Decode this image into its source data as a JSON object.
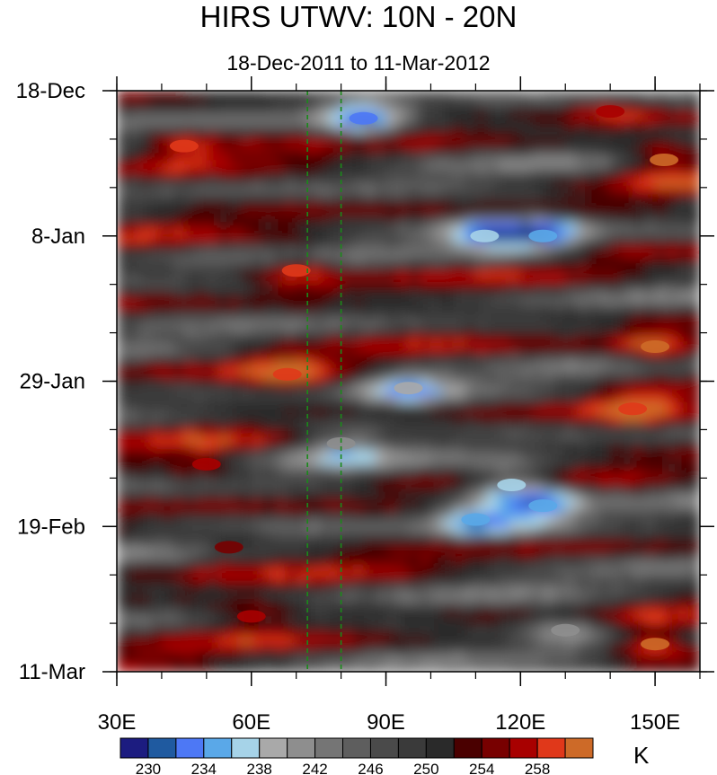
{
  "chart_data": {
    "type": "heatmap",
    "title": "HIRS UTWV: 10N - 20N",
    "subtitle": "18-Dec-2011 to 11-Mar-2012",
    "xlabel": "",
    "ylabel": "",
    "units": "K",
    "x_range": [
      30,
      160
    ],
    "x_ticks": [
      {
        "value": 30,
        "label": "30E"
      },
      {
        "value": 60,
        "label": "60E"
      },
      {
        "value": 90,
        "label": "90E"
      },
      {
        "value": 120,
        "label": "120E"
      },
      {
        "value": 150,
        "label": "150E"
      }
    ],
    "y_range_days": [
      0,
      84
    ],
    "y_ticks": [
      {
        "value": 0,
        "label": "18-Dec"
      },
      {
        "value": 21,
        "label": "8-Jan"
      },
      {
        "value": 42,
        "label": "29-Jan"
      },
      {
        "value": 63,
        "label": "19-Feb"
      },
      {
        "value": 84,
        "label": "11-Mar"
      }
    ],
    "reference_lines_lon": [
      72.5,
      80
    ],
    "colorbar": {
      "levels": [
        230,
        232,
        234,
        236,
        238,
        240,
        242,
        244,
        246,
        248,
        250,
        252,
        254,
        256,
        258,
        260
      ],
      "labels": [
        "230",
        "234",
        "238",
        "242",
        "246",
        "250",
        "254",
        "258"
      ],
      "colors": [
        "#1c1c80",
        "#1f5aa0",
        "#4d78f5",
        "#5aa8e8",
        "#a6d3e8",
        "#a9a9a9",
        "#8e8e8e",
        "#757575",
        "#5e5e5e",
        "#4a4a4a",
        "#3a3a3a",
        "#2a2a2a",
        "#4a0000",
        "#780000",
        "#a80000",
        "#e0381a",
        "#cd6a28"
      ]
    },
    "features": [
      {
        "lon": 140,
        "day": 3,
        "value": 256
      },
      {
        "lon": 152,
        "day": 10,
        "value": 261
      },
      {
        "lon": 45,
        "day": 8,
        "value": 259
      },
      {
        "lon": 70,
        "day": 26,
        "value": 259
      },
      {
        "lon": 68,
        "day": 41,
        "value": 258
      },
      {
        "lon": 150,
        "day": 37,
        "value": 260
      },
      {
        "lon": 145,
        "day": 46,
        "value": 259
      },
      {
        "lon": 85,
        "day": 4,
        "value": 232
      },
      {
        "lon": 112,
        "day": 21,
        "value": 236
      },
      {
        "lon": 125,
        "day": 21,
        "value": 234
      },
      {
        "lon": 95,
        "day": 43,
        "value": 238
      },
      {
        "lon": 80,
        "day": 51,
        "value": 240
      },
      {
        "lon": 118,
        "day": 57,
        "value": 237
      },
      {
        "lon": 125,
        "day": 60,
        "value": 235
      },
      {
        "lon": 110,
        "day": 62,
        "value": 235
      },
      {
        "lon": 130,
        "day": 78,
        "value": 240
      },
      {
        "lon": 150,
        "day": 80,
        "value": 260
      },
      {
        "lon": 60,
        "day": 76,
        "value": 256
      },
      {
        "lon": 55,
        "day": 66,
        "value": 255
      },
      {
        "lon": 50,
        "day": 54,
        "value": 256
      }
    ]
  }
}
